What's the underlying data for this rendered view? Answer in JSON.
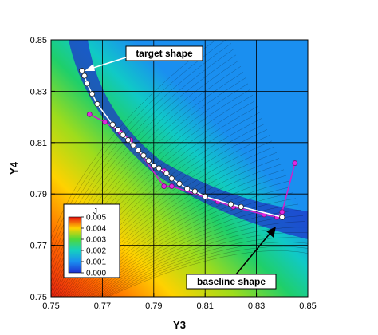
{
  "chart_data": {
    "type": "contour",
    "xlabel": "Y3",
    "ylabel": "Y4",
    "xlim": [
      0.75,
      0.85
    ],
    "ylim": [
      0.75,
      0.85
    ],
    "x_ticks": [
      "0.75",
      "0.77",
      "0.79",
      "0.81",
      "0.83",
      "0.85"
    ],
    "y_ticks": [
      "0.75",
      "0.77",
      "0.79",
      "0.81",
      "0.83",
      "0.85"
    ],
    "grid": true,
    "colorbar": {
      "title": "J",
      "labels": [
        "0.005",
        "0.004",
        "0.003",
        "0.002",
        "0.001",
        "0.000"
      ],
      "range": [
        0.0,
        0.005
      ]
    },
    "annotations": [
      "target shape",
      "baseline shape"
    ],
    "series": [
      {
        "marker": "white circle",
        "points": [
          [
            0.762,
            0.838
          ],
          [
            0.763,
            0.836
          ],
          [
            0.764,
            0.833
          ],
          [
            0.766,
            0.829
          ],
          [
            0.768,
            0.825
          ],
          [
            0.774,
            0.817
          ],
          [
            0.776,
            0.815
          ],
          [
            0.778,
            0.813
          ],
          [
            0.78,
            0.811
          ],
          [
            0.782,
            0.809
          ],
          [
            0.784,
            0.807
          ],
          [
            0.786,
            0.805
          ],
          [
            0.788,
            0.803
          ],
          [
            0.79,
            0.801
          ],
          [
            0.792,
            0.8
          ],
          [
            0.795,
            0.798
          ],
          [
            0.797,
            0.796
          ],
          [
            0.8,
            0.794
          ],
          [
            0.803,
            0.792
          ],
          [
            0.806,
            0.791
          ],
          [
            0.81,
            0.789
          ],
          [
            0.82,
            0.786
          ],
          [
            0.824,
            0.785
          ],
          [
            0.84,
            0.781
          ]
        ]
      },
      {
        "marker": "magenta circle",
        "points": [
          [
            0.765,
            0.821
          ],
          [
            0.771,
            0.818
          ],
          [
            0.777,
            0.814
          ],
          [
            0.781,
            0.811
          ],
          [
            0.794,
            0.793
          ],
          [
            0.797,
            0.793
          ],
          [
            0.815,
            0.787
          ],
          [
            0.821,
            0.785
          ],
          [
            0.833,
            0.782
          ],
          [
            0.838,
            0.781
          ],
          [
            0.84,
            0.783
          ],
          [
            0.845,
            0.802
          ]
        ],
        "extra_points": [
          [
            0.794,
            0.799
          ]
        ]
      }
    ]
  }
}
